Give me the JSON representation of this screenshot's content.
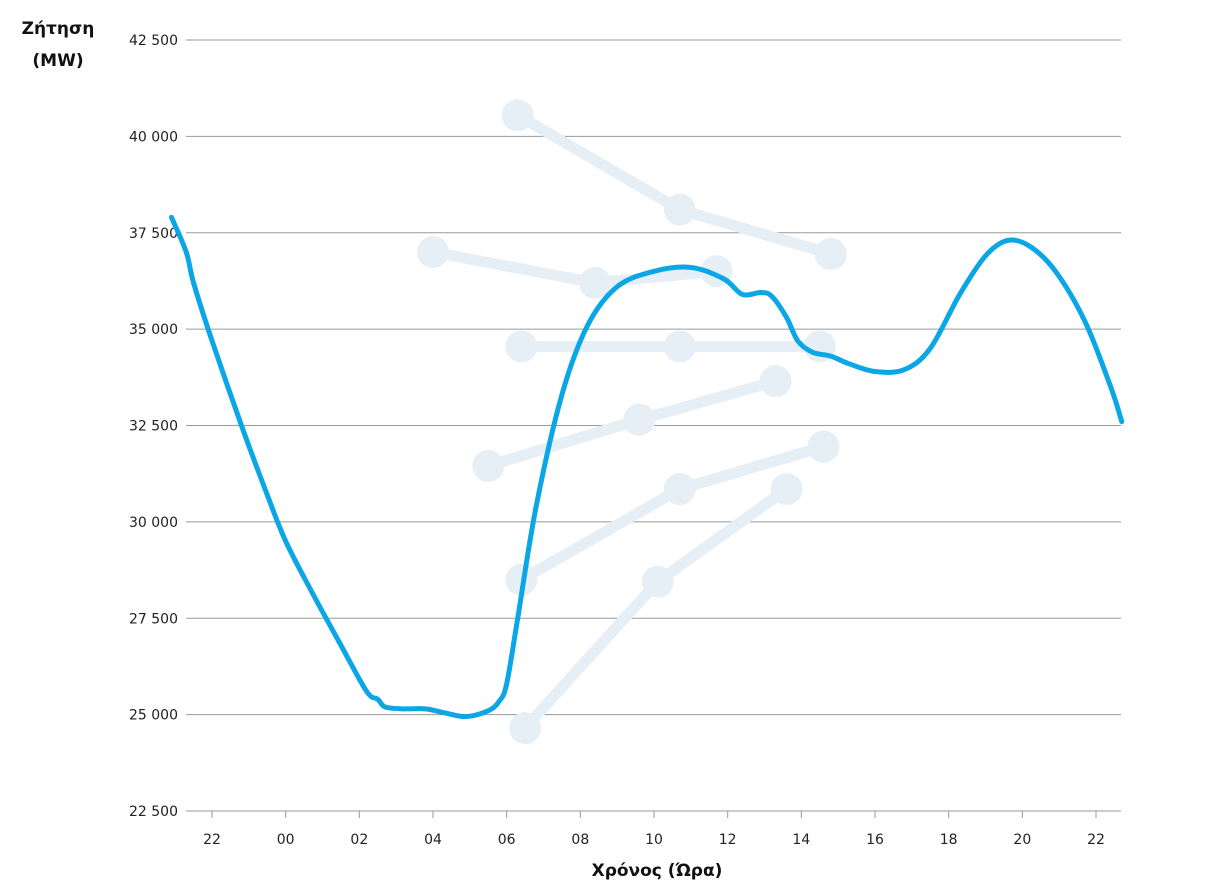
{
  "chart_data": {
    "type": "line",
    "title": "",
    "ylabel": [
      "Ζήτηση",
      "(MW)"
    ],
    "xlabel": "Χρόνος (Ώρα)",
    "ylim": [
      22500,
      42500
    ],
    "xlim": [
      20.6,
      46.7
    ],
    "yticks": [
      22500,
      25000,
      27500,
      30000,
      32500,
      35000,
      37500,
      40000,
      42500
    ],
    "ytick_labels": [
      "22 500",
      "25 000",
      "27 500",
      "30 000",
      "32 500",
      "35 000",
      "37 500",
      "40 000",
      "42 500"
    ],
    "xticks": [
      22,
      24,
      26,
      28,
      30,
      32,
      34,
      36,
      38,
      40,
      42,
      44,
      46
    ],
    "xtick_labels": [
      "22",
      "00",
      "02",
      "04",
      "06",
      "08",
      "10",
      "12",
      "14",
      "16",
      "18",
      "20",
      "22"
    ],
    "grid": true,
    "colors": {
      "main": "#0aa6e6",
      "faded": "#e6eef6",
      "grid": "#9a9a9a"
    },
    "series": [
      {
        "role": "main",
        "points": [
          [
            20.9,
            37900
          ],
          [
            21.3,
            37000
          ],
          [
            21.5,
            36200
          ],
          [
            22.0,
            34700
          ],
          [
            22.8,
            32500
          ],
          [
            23.5,
            30700
          ],
          [
            24.0,
            29500
          ],
          [
            24.7,
            28200
          ],
          [
            25.5,
            26800
          ],
          [
            26.2,
            25600
          ],
          [
            26.5,
            25400
          ],
          [
            26.7,
            25200
          ],
          [
            27.2,
            25150
          ],
          [
            27.8,
            25150
          ],
          [
            28.3,
            25050
          ],
          [
            28.9,
            24950
          ],
          [
            29.5,
            25100
          ],
          [
            29.8,
            25350
          ],
          [
            30.0,
            25800
          ],
          [
            30.3,
            27500
          ],
          [
            30.8,
            30400
          ],
          [
            31.5,
            33300
          ],
          [
            32.2,
            35100
          ],
          [
            33.0,
            36100
          ],
          [
            34.0,
            36500
          ],
          [
            35.0,
            36600
          ],
          [
            35.9,
            36300
          ],
          [
            36.4,
            35900
          ],
          [
            36.9,
            35950
          ],
          [
            37.2,
            35850
          ],
          [
            37.6,
            35300
          ],
          [
            37.9,
            34700
          ],
          [
            38.3,
            34400
          ],
          [
            38.8,
            34300
          ],
          [
            39.3,
            34100
          ],
          [
            40.0,
            33900
          ],
          [
            40.8,
            33950
          ],
          [
            41.5,
            34500
          ],
          [
            42.3,
            35900
          ],
          [
            43.0,
            36900
          ],
          [
            43.6,
            37300
          ],
          [
            44.2,
            37150
          ],
          [
            44.9,
            36500
          ],
          [
            45.7,
            35200
          ],
          [
            46.4,
            33500
          ],
          [
            46.7,
            32600
          ]
        ]
      },
      {
        "role": "faded",
        "points": [
          [
            30.3,
            40550
          ],
          [
            34.7,
            38100
          ],
          [
            38.8,
            36950
          ]
        ]
      },
      {
        "role": "faded",
        "points": [
          [
            28.0,
            37000
          ],
          [
            32.4,
            36200
          ],
          [
            35.7,
            36500
          ]
        ]
      },
      {
        "role": "faded",
        "points": [
          [
            30.4,
            34550
          ],
          [
            34.7,
            34550
          ],
          [
            38.5,
            34550
          ]
        ]
      },
      {
        "role": "faded",
        "points": [
          [
            29.5,
            31450
          ],
          [
            33.6,
            32650
          ],
          [
            37.3,
            33650
          ]
        ]
      },
      {
        "role": "faded",
        "points": [
          [
            30.4,
            28500
          ],
          [
            34.7,
            30850
          ],
          [
            38.6,
            31950
          ]
        ]
      },
      {
        "role": "faded",
        "points": [
          [
            30.5,
            24650
          ],
          [
            34.1,
            28450
          ],
          [
            37.6,
            30850
          ]
        ]
      }
    ]
  }
}
